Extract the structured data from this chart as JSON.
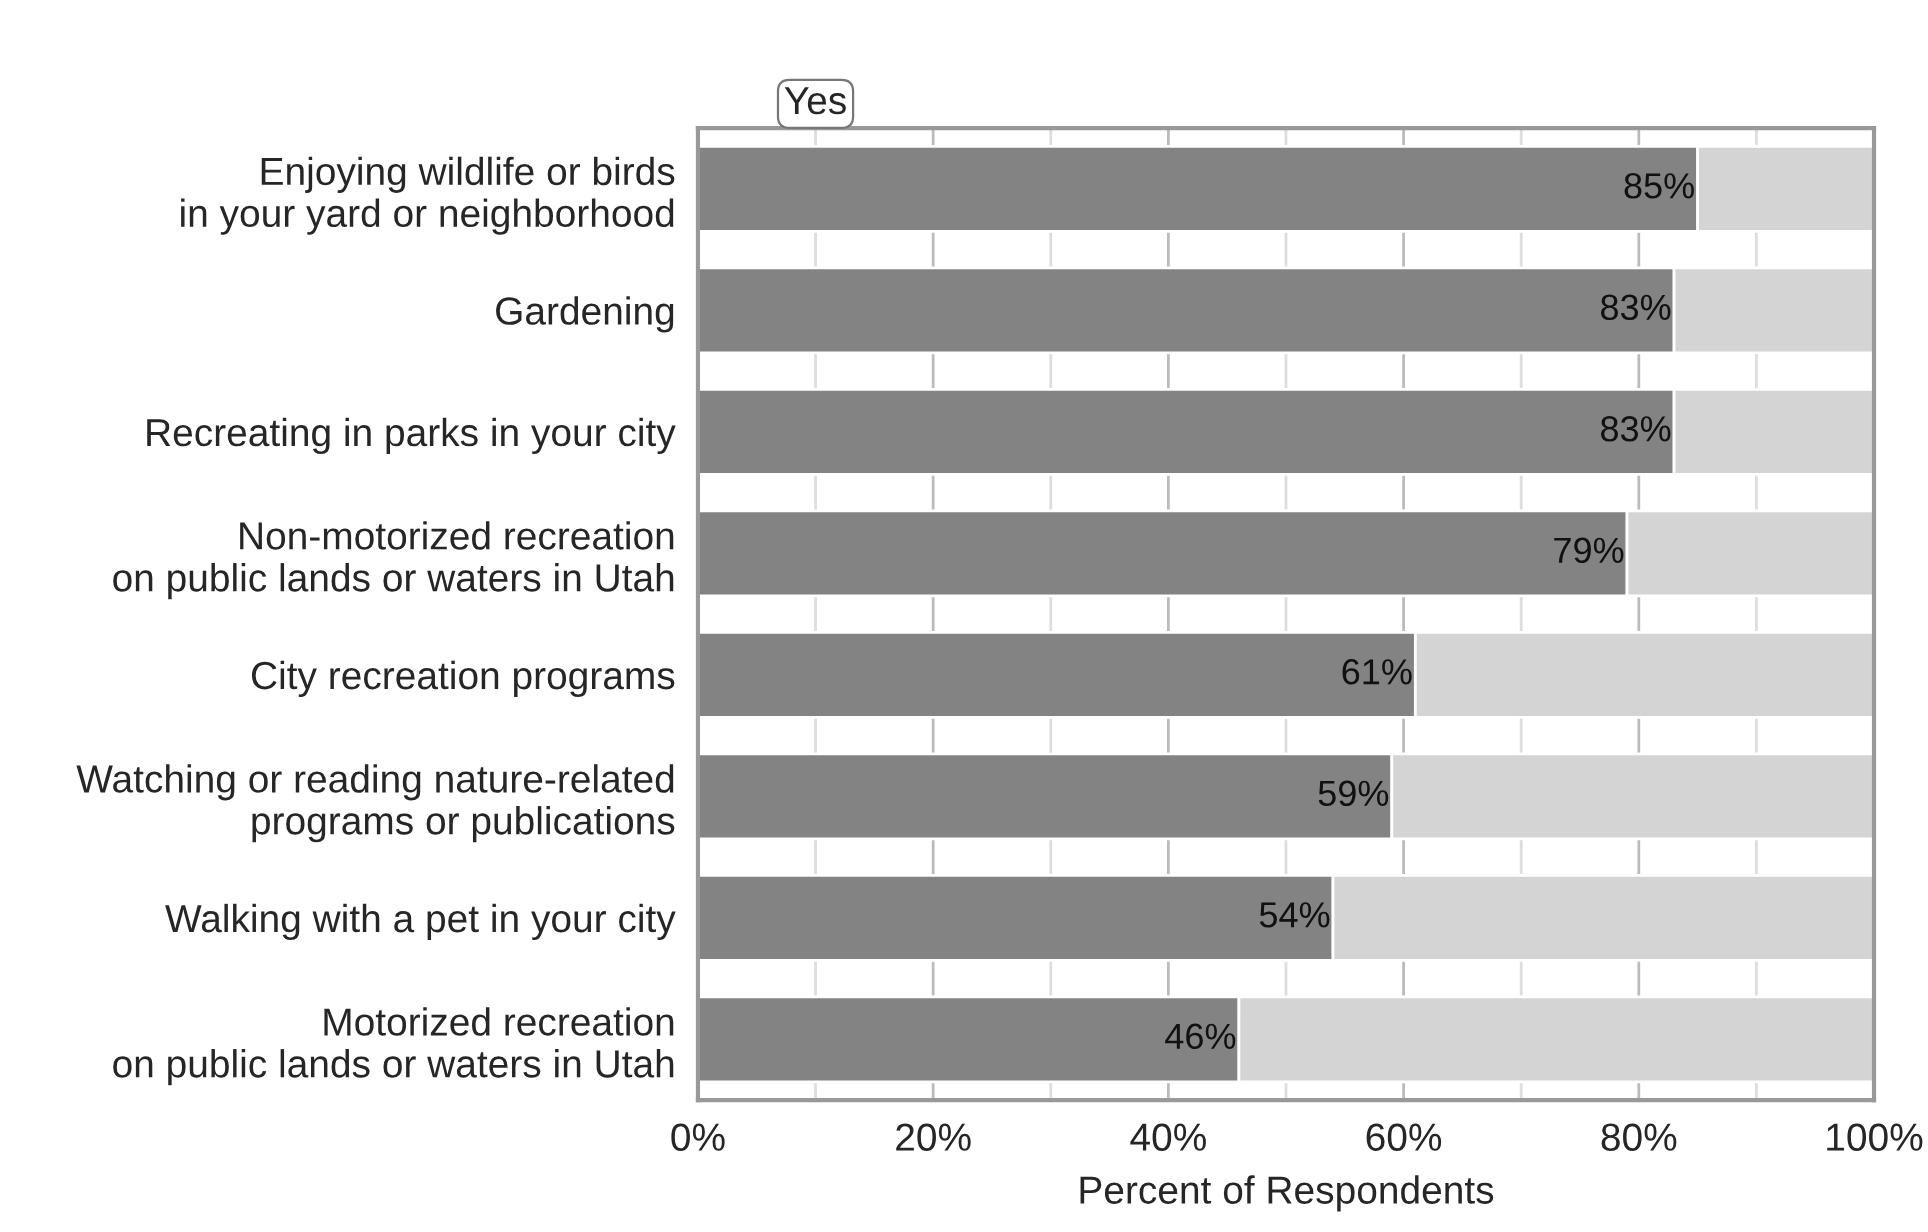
{
  "chart_data": {
    "type": "bar",
    "orientation": "horizontal",
    "stacked": true,
    "xlabel": "Percent of Respondents",
    "categories": [
      "Enjoying wildlife or birds\nin your yard or neighborhood",
      "Gardening",
      "Recreating in parks in your city",
      "Non-motorized recreation\non public lands or waters in Utah",
      "City recreation programs",
      "Watching or reading nature-related\nprograms or publications",
      "Walking with a pet in your city",
      "Motorized recreation\non public lands or waters in Utah"
    ],
    "series": [
      {
        "name": "Yes",
        "color": "#838383",
        "values": [
          85,
          83,
          83,
          79,
          61,
          59,
          54,
          46
        ],
        "value_labels": [
          "85%",
          "83%",
          "83%",
          "79%",
          "61%",
          "59%",
          "54%",
          "46%"
        ]
      },
      {
        "color": "#d4d4d4",
        "values": [
          15,
          17,
          17,
          21,
          39,
          41,
          46,
          54
        ]
      }
    ],
    "xlim": [
      0,
      100
    ],
    "xticks": [
      {
        "value": 0,
        "label": "0%"
      },
      {
        "value": 10,
        "label": null
      },
      {
        "value": 20,
        "label": "20%"
      },
      {
        "value": 30,
        "label": null
      },
      {
        "value": 40,
        "label": "40%"
      },
      {
        "value": 50,
        "label": null
      },
      {
        "value": 60,
        "label": "60%"
      },
      {
        "value": 70,
        "label": null
      },
      {
        "value": 80,
        "label": "80%"
      },
      {
        "value": 90,
        "label": null
      },
      {
        "value": 100,
        "label": "100%"
      }
    ],
    "grid": "x"
  }
}
